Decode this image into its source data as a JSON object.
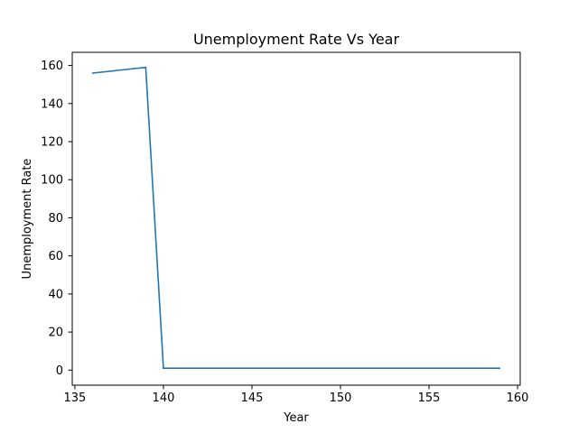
{
  "chart_data": {
    "type": "line",
    "title": "Unemployment Rate Vs Year",
    "xlabel": "Year",
    "ylabel": "Unemployment Rate",
    "xlim": [
      134.85,
      160.15
    ],
    "ylim": [
      -7.9,
      166.9
    ],
    "xticks": [
      135,
      140,
      145,
      150,
      155,
      160
    ],
    "yticks": [
      0,
      20,
      40,
      60,
      80,
      100,
      120,
      140,
      160
    ],
    "grid": false,
    "series": [
      {
        "x": [
          136,
          139,
          140,
          159
        ],
        "y": [
          156,
          159,
          1,
          1
        ],
        "color": "#1f77b4"
      }
    ]
  }
}
